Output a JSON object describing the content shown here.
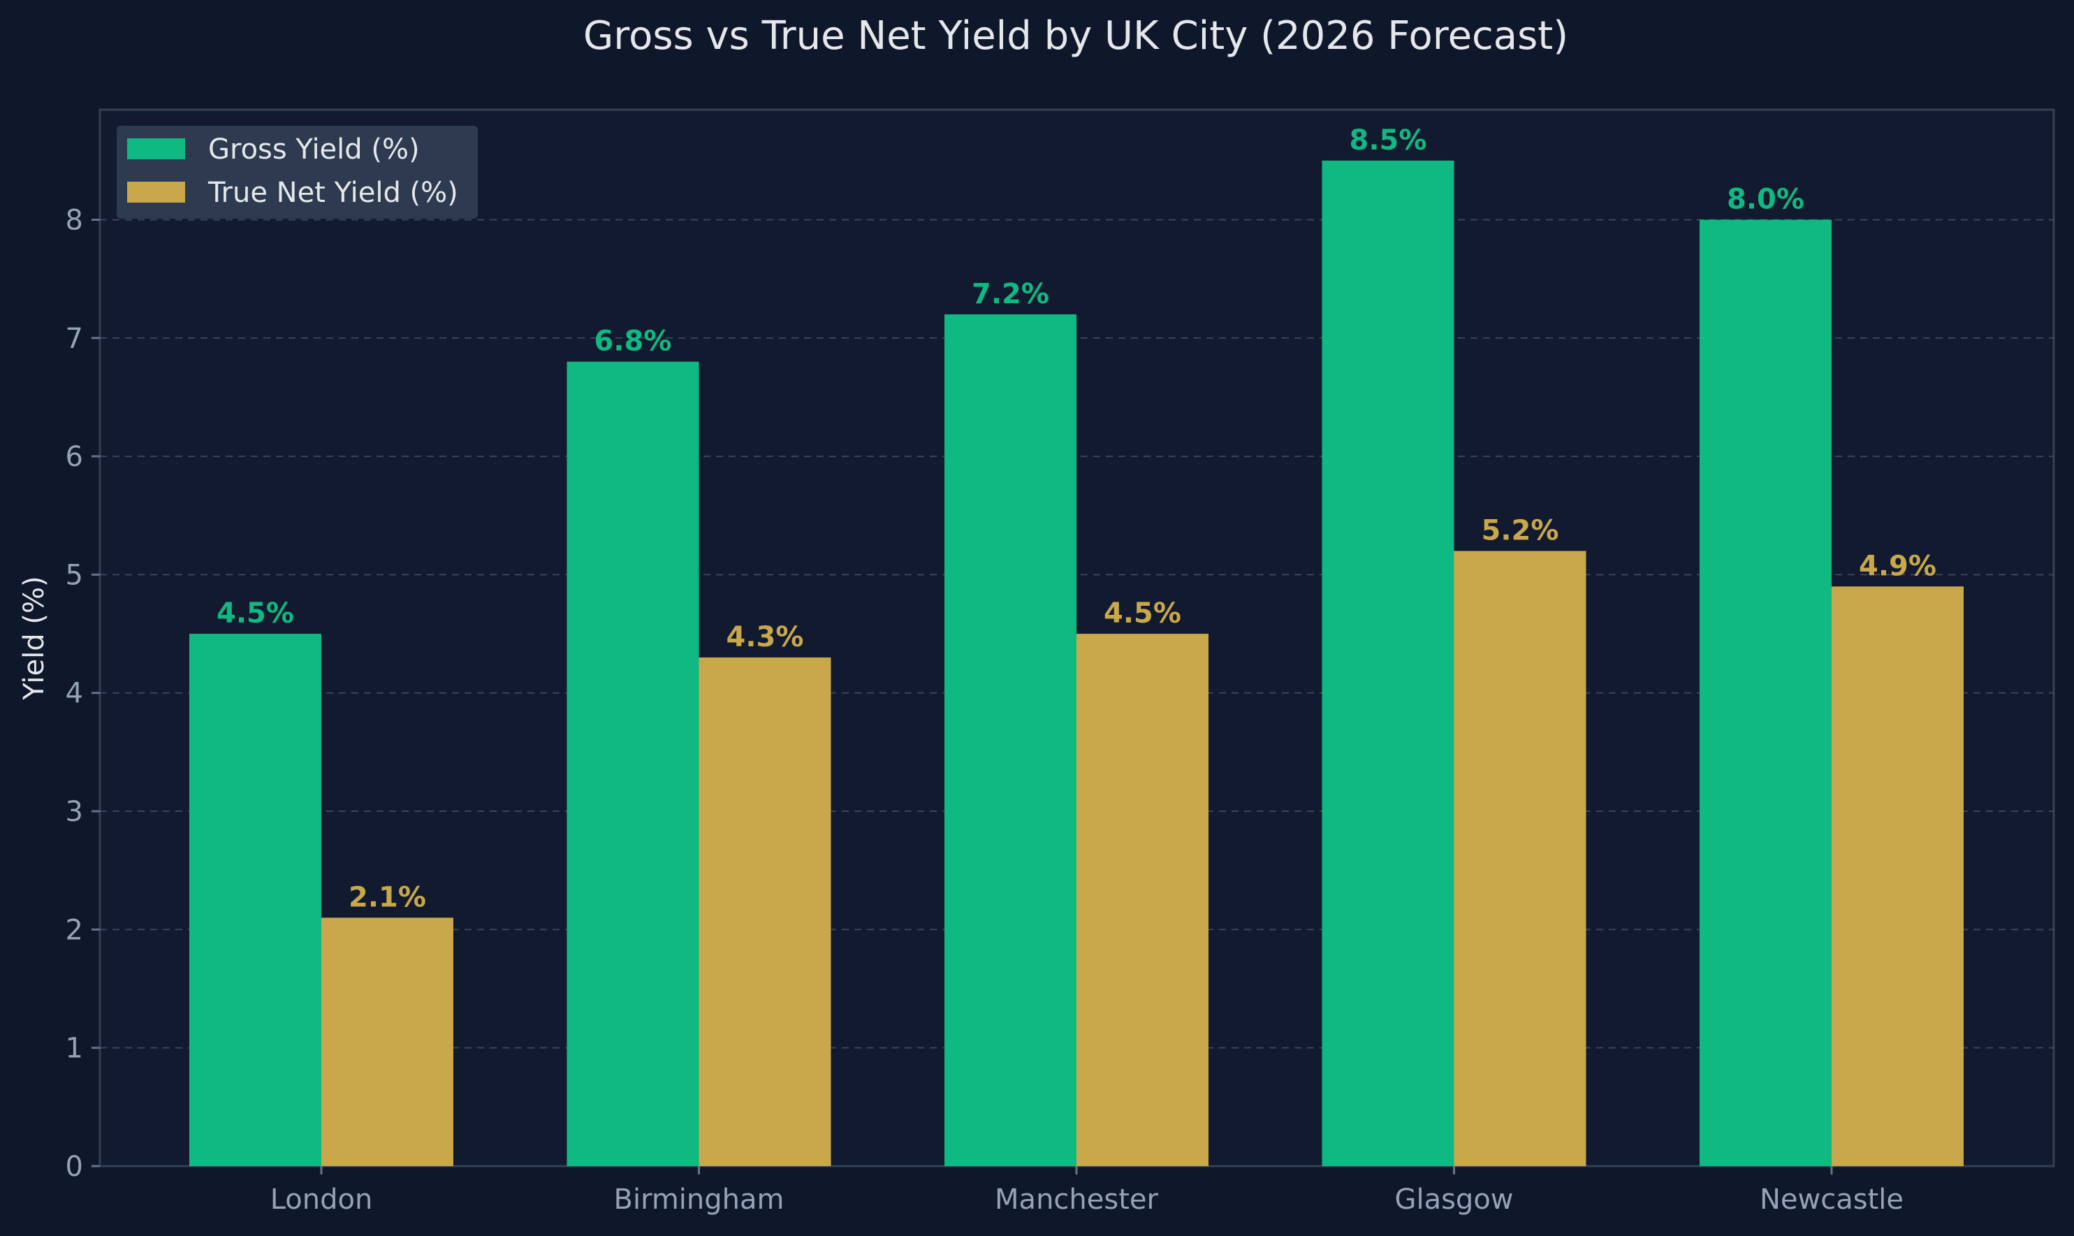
{
  "chart_data": {
    "type": "bar",
    "title": "Gross vs True Net Yield by UK City (2026 Forecast)",
    "xlabel": "",
    "ylabel": "Yield (%)",
    "ylim": [
      0,
      8.93
    ],
    "yticks": [
      0,
      1,
      2,
      3,
      4,
      5,
      6,
      7,
      8
    ],
    "grid": true,
    "legend_position": "top-left",
    "categories": [
      "London",
      "Birmingham",
      "Manchester",
      "Glasgow",
      "Newcastle"
    ],
    "series": [
      {
        "name": "Gross Yield (%)",
        "color": "#10b981",
        "values": [
          4.5,
          6.8,
          7.2,
          8.5,
          8.0
        ],
        "labels": [
          "4.5%",
          "6.8%",
          "7.2%",
          "8.5%",
          "8.0%"
        ]
      },
      {
        "name": "True Net Yield (%)",
        "color": "#c9a84b",
        "values": [
          2.1,
          4.3,
          4.5,
          5.2,
          4.9
        ],
        "labels": [
          "2.1%",
          "4.3%",
          "4.5%",
          "5.2%",
          "4.9%"
        ]
      }
    ]
  }
}
